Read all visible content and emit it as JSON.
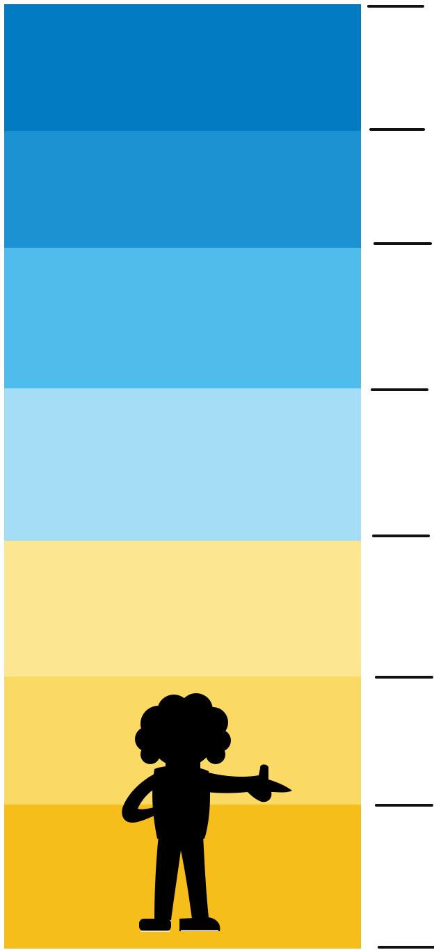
{
  "chart": {
    "type": "height-chart",
    "bands": [
      {
        "color": "#037BC2"
      },
      {
        "color": "#1D92D2"
      },
      {
        "color": "#4FBCEB"
      },
      {
        "color": "#A6DDF6"
      },
      {
        "color": "#FDE692"
      },
      {
        "color": "#FADA65"
      },
      {
        "color": "#F5BE1A"
      }
    ],
    "tick_count": 8,
    "tick_color": "#111111",
    "silhouette": {
      "icon": "child-pointing-silhouette-icon",
      "color": "#000000"
    }
  }
}
